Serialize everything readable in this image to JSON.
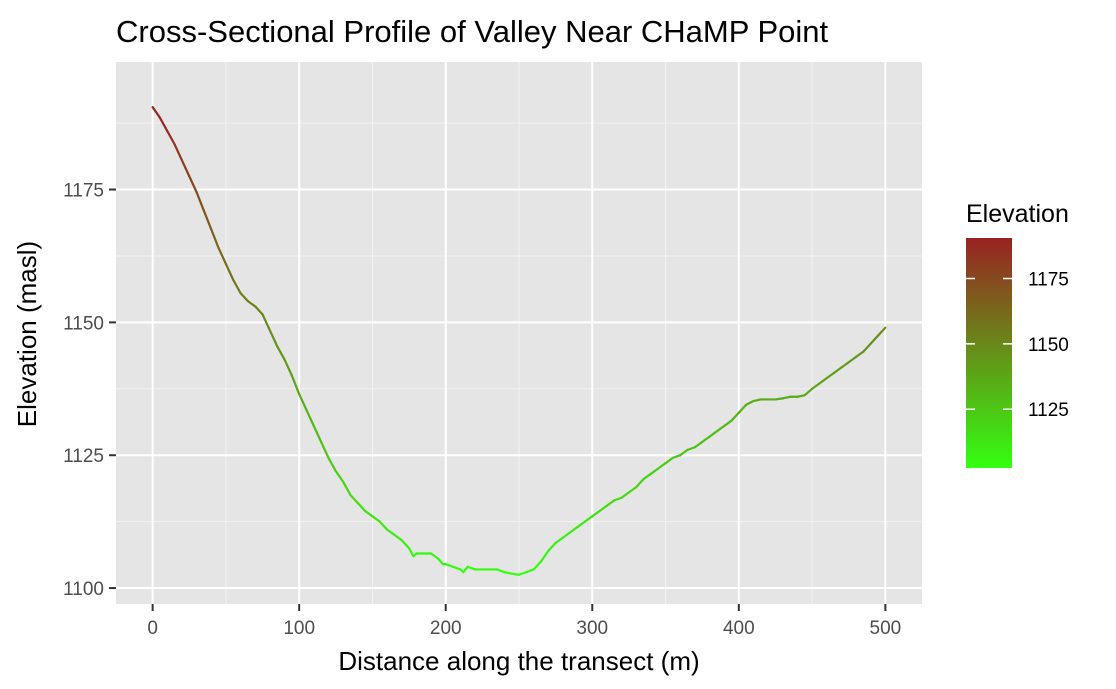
{
  "chart_data": {
    "type": "line",
    "title": "Cross-Sectional Profile of Valley Near CHaMP Point",
    "xlabel": "Distance along the transect (m)",
    "ylabel": "Elevation (masl)",
    "xlim": [
      -25,
      525
    ],
    "ylim": [
      1097,
      1199
    ],
    "x_ticks": [
      0,
      100,
      200,
      300,
      400,
      500
    ],
    "x_minor_ticks": [
      50,
      150,
      250,
      350,
      450
    ],
    "y_ticks": [
      1100,
      1125,
      1150,
      1175
    ],
    "y_minor_ticks": [
      1112.5,
      1137.5,
      1162.5,
      1187.5
    ],
    "grid": true,
    "legend": {
      "title": "Elevation",
      "position": "right",
      "type": "colorbar",
      "low_color": "#33ff11",
      "high_color": "#992222",
      "range": [
        1102.5,
        1190.5
      ],
      "ticks": [
        1125,
        1150,
        1175
      ]
    },
    "x": [
      0,
      5,
      10,
      15,
      20,
      25,
      30,
      35,
      40,
      45,
      50,
      55,
      60,
      65,
      70,
      75,
      80,
      85,
      90,
      95,
      100,
      105,
      110,
      115,
      120,
      125,
      130,
      135,
      140,
      145,
      150,
      155,
      160,
      165,
      170,
      175,
      178,
      180,
      185,
      190,
      195,
      198,
      200,
      205,
      210,
      212,
      215,
      220,
      225,
      230,
      235,
      240,
      245,
      250,
      255,
      260,
      265,
      270,
      275,
      280,
      285,
      290,
      295,
      300,
      305,
      310,
      315,
      320,
      325,
      330,
      335,
      340,
      345,
      350,
      355,
      360,
      365,
      370,
      375,
      380,
      385,
      390,
      395,
      400,
      405,
      410,
      415,
      420,
      425,
      430,
      435,
      440,
      445,
      450,
      455,
      460,
      465,
      470,
      475,
      480,
      485,
      490,
      495,
      500
    ],
    "y": [
      1190.5,
      1188.5,
      1186.0,
      1183.5,
      1180.5,
      1177.5,
      1174.5,
      1171.0,
      1167.5,
      1164.0,
      1161.0,
      1158.0,
      1155.5,
      1154.0,
      1153.0,
      1151.5,
      1148.5,
      1145.5,
      1143.0,
      1140.0,
      1136.5,
      1133.5,
      1130.5,
      1127.5,
      1124.5,
      1122.0,
      1120.0,
      1117.5,
      1116.0,
      1114.5,
      1113.5,
      1112.5,
      1111.0,
      1110.0,
      1109.0,
      1107.5,
      1106.0,
      1106.5,
      1106.5,
      1106.5,
      1105.5,
      1104.5,
      1104.5,
      1104.0,
      1103.5,
      1103.0,
      1104.0,
      1103.5,
      1103.5,
      1103.5,
      1103.5,
      1103.0,
      1102.7,
      1102.5,
      1103.0,
      1103.5,
      1105.0,
      1107.0,
      1108.5,
      1109.5,
      1110.5,
      1111.5,
      1112.5,
      1113.5,
      1114.5,
      1115.5,
      1116.5,
      1117.0,
      1118.0,
      1119.0,
      1120.5,
      1121.5,
      1122.5,
      1123.5,
      1124.5,
      1125.0,
      1126.0,
      1126.5,
      1127.5,
      1128.5,
      1129.5,
      1130.5,
      1131.5,
      1133.0,
      1134.5,
      1135.2,
      1135.5,
      1135.5,
      1135.5,
      1135.7,
      1136.0,
      1136.0,
      1136.3,
      1137.5,
      1138.5,
      1139.5,
      1140.5,
      1141.5,
      1142.5,
      1143.5,
      1144.5,
      1146.0,
      1147.5,
      1149.0
    ]
  }
}
